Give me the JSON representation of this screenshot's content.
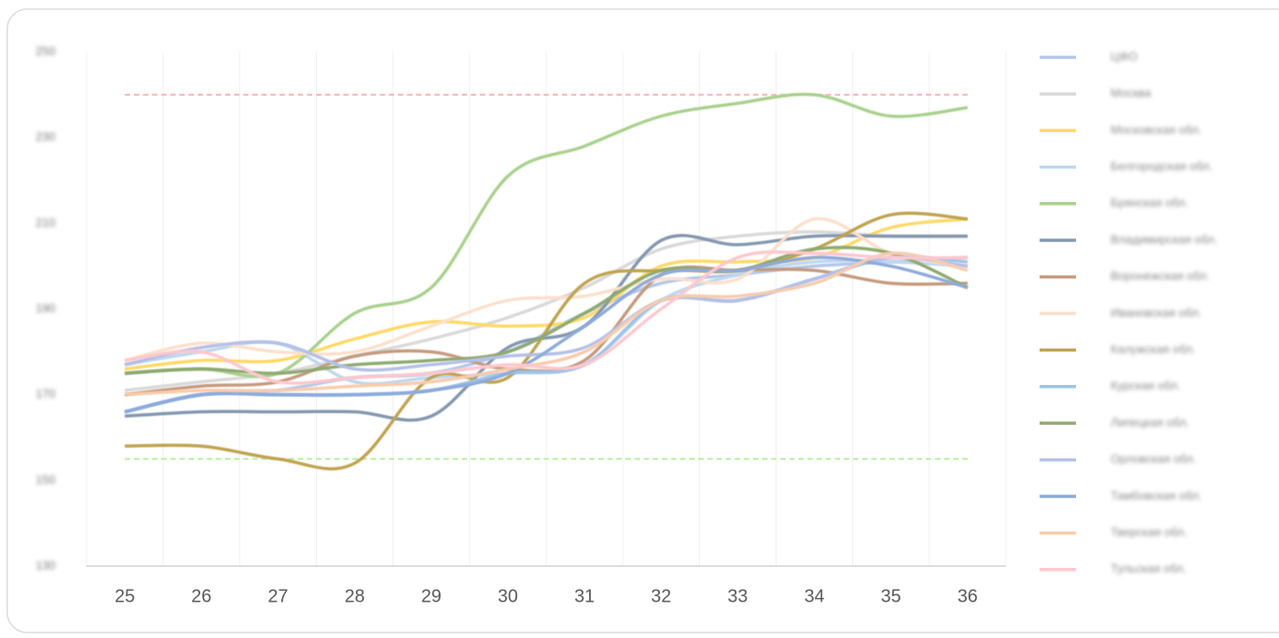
{
  "chart_data": {
    "type": "line",
    "categories": [
      "25",
      "26",
      "27",
      "28",
      "29",
      "30",
      "31",
      "32",
      "33",
      "34",
      "35",
      "36"
    ],
    "ylim": [
      130,
      250
    ],
    "yticks": [
      130,
      150,
      170,
      190,
      210,
      230,
      250
    ],
    "grid": true,
    "legend": "right",
    "reference_lines": [
      {
        "value": 240,
        "color": "#ffb3b8"
      },
      {
        "value": 155,
        "color": "#b6f0a0"
      }
    ],
    "series": [
      {
        "name": "ЦФО",
        "color": "#b4c7e7",
        "values": [
          166,
          170,
          171,
          174,
          175,
          180,
          189,
          196,
          198,
          200,
          201,
          202
        ]
      },
      {
        "name": "Москва",
        "color": "#d9d9d9",
        "values": [
          171,
          173,
          175,
          179,
          183,
          188,
          195,
          204,
          207,
          208,
          207,
          207
        ]
      },
      {
        "name": "Московская обл.",
        "color": "#ffd966",
        "values": [
          176,
          178,
          178,
          183,
          187,
          186,
          188,
          200,
          201,
          202,
          209,
          211
        ]
      },
      {
        "name": "Белгородская обл.",
        "color": "#bdd7ee",
        "values": [
          177,
          180,
          182,
          173,
          174,
          175,
          177,
          192,
          198,
          201,
          201,
          200
        ]
      },
      {
        "name": "Брянская обл.",
        "color": "#a9d18e",
        "values": [
          175,
          176,
          175,
          189,
          195,
          221,
          228,
          235,
          238,
          240,
          235,
          237
        ]
      },
      {
        "name": "Владимирская обл.",
        "color": "#8497b0",
        "values": [
          165,
          166,
          166,
          166,
          165,
          181,
          186,
          206,
          205,
          207,
          207,
          207
        ]
      },
      {
        "name": "Воронежская обл.",
        "color": "#c59a7e",
        "values": [
          170,
          172,
          173,
          179,
          180,
          176,
          178,
          198,
          199,
          199,
          196,
          196
        ]
      },
      {
        "name": "Ивановская обл.",
        "color": "#fbe0cc",
        "values": [
          178,
          182,
          180,
          180,
          186,
          192,
          193,
          197,
          197,
          211,
          203,
          200
        ]
      },
      {
        "name": "Калужская обл.",
        "color": "#bfa350",
        "values": [
          158,
          158,
          155,
          154,
          174,
          174,
          196,
          199,
          199,
          204,
          212,
          211
        ]
      },
      {
        "name": "Курская обл.",
        "color": "#9dc3e6",
        "values": [
          166,
          170,
          170,
          170,
          171,
          175,
          177,
          192,
          192,
          197,
          202,
          201
        ]
      },
      {
        "name": "Липецкая обл.",
        "color": "#8faa70",
        "values": [
          175,
          176,
          175,
          177,
          178,
          180,
          189,
          199,
          199,
          204,
          203,
          195
        ]
      },
      {
        "name": "Орловская обл.",
        "color": "#b4c0e7",
        "values": [
          177,
          181,
          182,
          176,
          177,
          179,
          181,
          192,
          192,
          197,
          202,
          200
        ]
      },
      {
        "name": "Тамбовская обл.",
        "color": "#8eaadb",
        "values": [
          166,
          170,
          170,
          170,
          171,
          175,
          186,
          198,
          199,
          202,
          200,
          195
        ]
      },
      {
        "name": "Тверская обл.",
        "color": "#f8cbad",
        "values": [
          170,
          171,
          171,
          172,
          173,
          176,
          180,
          192,
          193,
          196,
          203,
          199
        ]
      },
      {
        "name": "Тульская обл.",
        "color": "#ffc7ce",
        "values": [
          178,
          180,
          173,
          174,
          175,
          177,
          177,
          190,
          202,
          203,
          202,
          202
        ]
      }
    ]
  }
}
